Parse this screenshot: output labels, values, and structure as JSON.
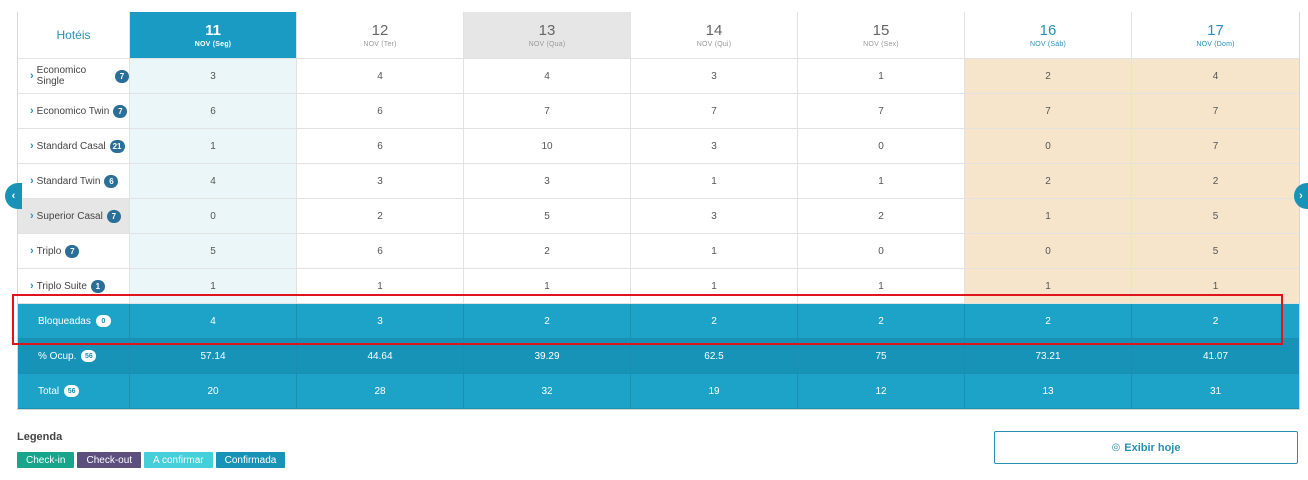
{
  "header": {
    "name_label": "Hotéis"
  },
  "days": [
    {
      "day": "11",
      "month": "NOV (Seg)"
    },
    {
      "day": "12",
      "month": "NOV (Ter)"
    },
    {
      "day": "13",
      "month": "NOV (Qua)"
    },
    {
      "day": "14",
      "month": "NOV (Qui)"
    },
    {
      "day": "15",
      "month": "NOV (Sex)"
    },
    {
      "day": "16",
      "month": "NOV (Sáb)"
    },
    {
      "day": "17",
      "month": "NOV (Dom)"
    }
  ],
  "rooms": [
    {
      "name": "Economico Single",
      "count": "7",
      "values": [
        "3",
        "4",
        "4",
        "3",
        "1",
        "2",
        "4"
      ]
    },
    {
      "name": "Economico Twin",
      "count": "7",
      "values": [
        "6",
        "6",
        "7",
        "7",
        "7",
        "7",
        "7"
      ]
    },
    {
      "name": "Standard Casal",
      "count": "21",
      "values": [
        "1",
        "6",
        "10",
        "3",
        "0",
        "0",
        "7"
      ]
    },
    {
      "name": "Standard Twin",
      "count": "6",
      "values": [
        "4",
        "3",
        "3",
        "1",
        "1",
        "2",
        "2"
      ]
    },
    {
      "name": "Superior Casal",
      "count": "7",
      "values": [
        "0",
        "2",
        "5",
        "3",
        "2",
        "1",
        "5"
      ]
    },
    {
      "name": "Triplo",
      "count": "7",
      "values": [
        "5",
        "6",
        "2",
        "1",
        "0",
        "0",
        "5"
      ]
    },
    {
      "name": "Triplo Suite",
      "count": "1",
      "values": [
        "1",
        "1",
        "1",
        "1",
        "1",
        "1",
        "1"
      ]
    }
  ],
  "summary": [
    {
      "name": "Bloqueadas",
      "count": "0",
      "values": [
        "4",
        "3",
        "2",
        "2",
        "2",
        "2",
        "2"
      ]
    },
    {
      "name": "% Ocup.",
      "count": "56",
      "values": [
        "57.14",
        "44.64",
        "39.29",
        "62.5",
        "75",
        "73.21",
        "41.07"
      ]
    },
    {
      "name": "Total",
      "count": "56",
      "values": [
        "20",
        "28",
        "32",
        "19",
        "12",
        "13",
        "31"
      ]
    }
  ],
  "legend": {
    "title": "Legenda",
    "items": [
      {
        "label": "Check-in",
        "color": "#17a68c"
      },
      {
        "label": "Check-out",
        "color": "#5c4e7d"
      },
      {
        "label": "A confirmar",
        "color": "#46cfd9"
      },
      {
        "label": "Confirmada",
        "color": "#1793b8"
      }
    ]
  },
  "today_button": {
    "label": "Exibir hoje"
  },
  "icons": {
    "prev": "chevron-left-icon",
    "next": "chevron-right-icon",
    "target": "target-icon"
  }
}
